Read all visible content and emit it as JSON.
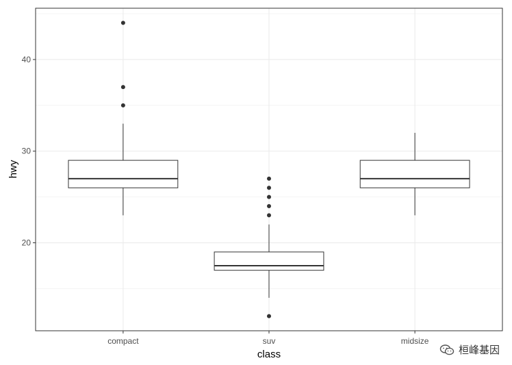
{
  "chart_data": {
    "type": "boxplot",
    "xlabel": "class",
    "ylabel": "hwy",
    "categories": [
      "compact",
      "suv",
      "midsize"
    ],
    "ylim": [
      10.4,
      45.6
    ],
    "yticks": [
      20,
      30,
      40
    ],
    "grid": true,
    "boxes": [
      {
        "category": "compact",
        "lower_whisker": 23,
        "q1": 26,
        "median": 27,
        "q3": 29,
        "upper_whisker": 33,
        "outliers": [
          35,
          37,
          44
        ]
      },
      {
        "category": "suv",
        "lower_whisker": 14,
        "q1": 17,
        "median": 17.5,
        "q3": 19,
        "upper_whisker": 22,
        "outliers": [
          12,
          23,
          24,
          25,
          26,
          27
        ]
      },
      {
        "category": "midsize",
        "lower_whisker": 23,
        "q1": 26,
        "median": 27,
        "q3": 29,
        "upper_whisker": 32,
        "outliers": []
      }
    ]
  },
  "watermark": {
    "icon": "wechat-icon",
    "text": "桓峰基因"
  }
}
